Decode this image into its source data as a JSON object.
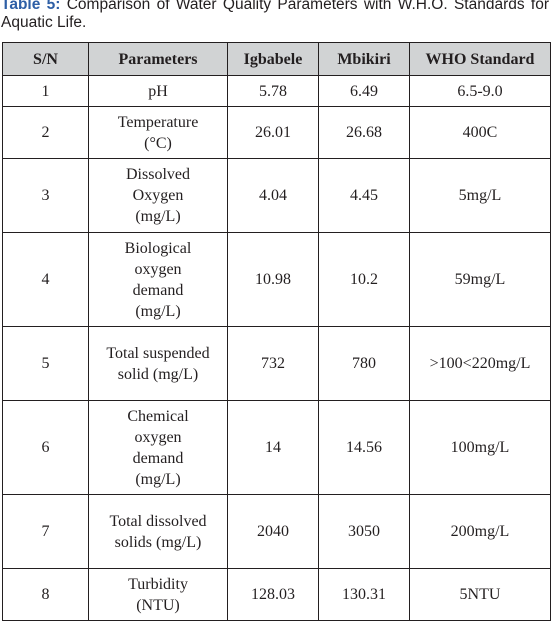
{
  "caption": {
    "label": "Table 5:",
    "text": "Comparison of Water Quality Parameters with W.H.O. Standards for Aquatic Life."
  },
  "table": {
    "headers": [
      "S/N",
      "Parameters",
      "Igbabele",
      "Mbikiri",
      "WHO Standard"
    ],
    "rows": [
      {
        "sn": "1",
        "parameter": "pH",
        "igbabele": "5.78",
        "mbikiri": "6.49",
        "who": "6.5-9.0"
      },
      {
        "sn": "2",
        "parameter": "Temperature (°C)",
        "igbabele": "26.01",
        "mbikiri": "26.68",
        "who": "400C"
      },
      {
        "sn": "3",
        "parameter": "Dissolved Oxygen (mg/L)",
        "igbabele": "4.04",
        "mbikiri": "4.45",
        "who": "5mg/L"
      },
      {
        "sn": "4",
        "parameter": "Biological oxygen demand (mg/L)",
        "igbabele": "10.98",
        "mbikiri": "10.2",
        "who": "59mg/L"
      },
      {
        "sn": "5",
        "parameter": "Total suspended solid (mg/L)",
        "igbabele": "732",
        "mbikiri": "780",
        "who": ">100<220mg/L"
      },
      {
        "sn": "6",
        "parameter": "Chemical oxygen demand (mg/L)",
        "igbabele": "14",
        "mbikiri": "14.56",
        "who": "100mg/L"
      },
      {
        "sn": "7",
        "parameter": "Total dissolved solids (mg/L)",
        "igbabele": "2040",
        "mbikiri": "3050",
        "who": "200mg/L"
      },
      {
        "sn": "8",
        "parameter": "Turbidity (NTU)",
        "igbabele": "128.03",
        "mbikiri": "130.31",
        "who": "5NTU"
      }
    ]
  }
}
